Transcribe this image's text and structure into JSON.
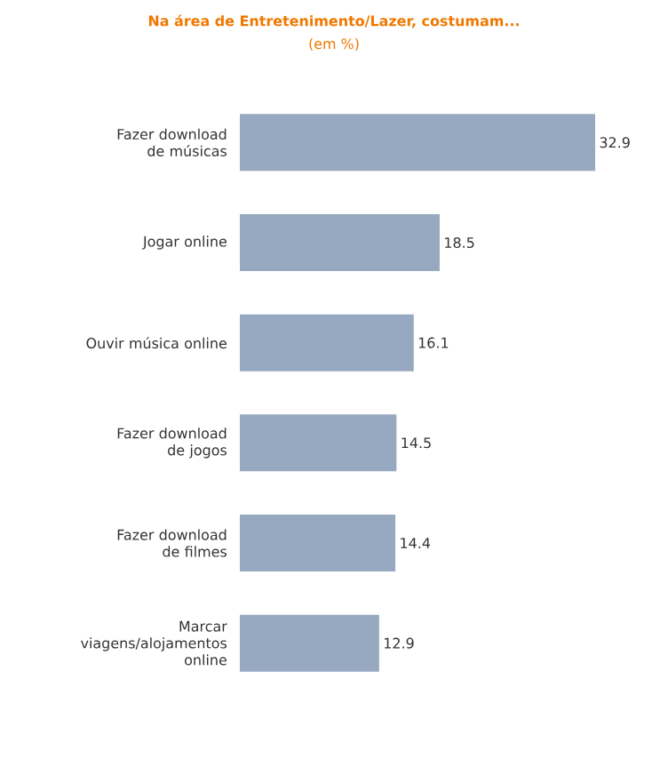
{
  "chart_data": {
    "type": "bar",
    "orientation": "horizontal",
    "title": "Na área de Entretenimento/Lazer, costumam...",
    "subtitle": "(em %)",
    "categories": [
      "Fazer download de músicas",
      "Jogar online",
      "Ouvir música online",
      "Fazer download de jogos",
      "Fazer download de filmes",
      "Marcar viagens/alojamentos online"
    ],
    "values": [
      32.9,
      18.5,
      16.1,
      14.5,
      14.4,
      12.9
    ],
    "color": "#97a9c1",
    "data_labels": true
  }
}
